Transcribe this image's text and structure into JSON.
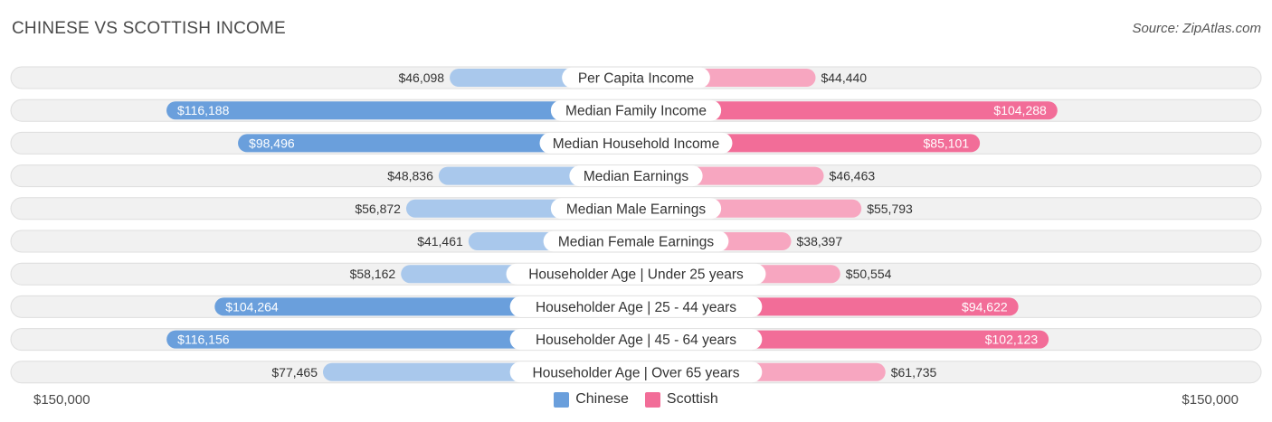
{
  "header": {
    "title": "CHINESE VS SCOTTISH INCOME",
    "source": "Source: ZipAtlas.com"
  },
  "colors": {
    "chinese_strong": "#6a9fdc",
    "chinese_light": "#a9c8ec",
    "scottish_strong": "#f26d98",
    "scottish_light": "#f7a6c0",
    "row_bg": "#f1f1f1",
    "row_border": "#dedede"
  },
  "chart_data": {
    "type": "bar",
    "orientation": "horizontal-diverging",
    "title": "CHINESE VS SCOTTISH INCOME",
    "categories": [
      "Per Capita Income",
      "Median Family Income",
      "Median Household Income",
      "Median Earnings",
      "Median Male Earnings",
      "Median Female Earnings",
      "Householder Age | Under 25 years",
      "Householder Age | 25 - 44 years",
      "Householder Age | 45 - 64 years",
      "Householder Age | Over 65 years"
    ],
    "series": [
      {
        "name": "Chinese",
        "side": "left",
        "values": [
          46098,
          116188,
          98496,
          48836,
          56872,
          41461,
          58162,
          104264,
          116156,
          77465
        ],
        "labels": [
          "$46,098",
          "$116,188",
          "$98,496",
          "$48,836",
          "$56,872",
          "$41,461",
          "$58,162",
          "$104,264",
          "$116,156",
          "$77,465"
        ]
      },
      {
        "name": "Scottish",
        "side": "right",
        "values": [
          44440,
          104288,
          85101,
          46463,
          55793,
          38397,
          50554,
          94622,
          102123,
          61735
        ],
        "labels": [
          "$44,440",
          "$104,288",
          "$85,101",
          "$46,463",
          "$55,793",
          "$38,397",
          "$50,554",
          "$94,622",
          "$102,123",
          "$61,735"
        ]
      }
    ],
    "xlim": [
      0,
      150000
    ],
    "axis_labels": {
      "left": "$150,000",
      "right": "$150,000"
    },
    "legend": {
      "placement": "bottom-center"
    },
    "grid": false
  }
}
